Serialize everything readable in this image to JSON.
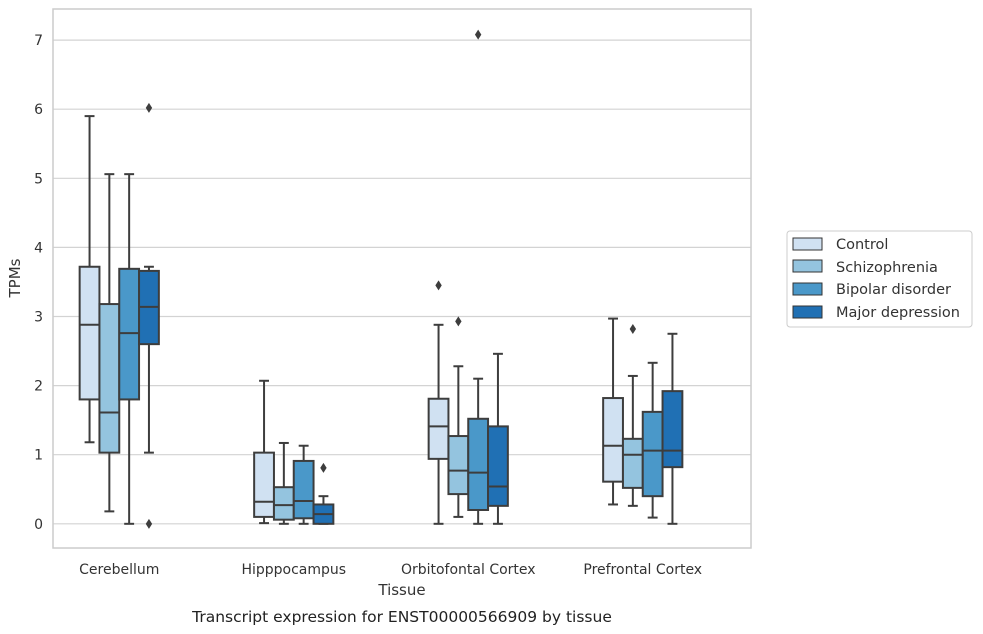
{
  "chart_data": {
    "type": "box",
    "title": "",
    "caption": "Transcript expression for ENST00000566909 by tissue",
    "xlabel": "Tissue",
    "ylabel": "TPMs",
    "ylim": [
      -0.35,
      7.45
    ],
    "yticks": [
      0,
      1,
      2,
      3,
      4,
      5,
      6,
      7
    ],
    "grid": true,
    "legend_position": "right",
    "categories": [
      "Cerebellum",
      "Hipppocampus",
      "Orbitofontal Cortex",
      "Prefrontal Cortex"
    ],
    "series": [
      {
        "name": "Control",
        "color": "#d0e1f2",
        "boxes": [
          {
            "whisker_low": 1.18,
            "q1": 1.8,
            "median": 2.88,
            "q3": 3.72,
            "whisker_high": 5.9,
            "outliers": []
          },
          {
            "whisker_low": 0.01,
            "q1": 0.1,
            "median": 0.32,
            "q3": 1.03,
            "whisker_high": 2.07,
            "outliers": []
          },
          {
            "whisker_low": 0.0,
            "q1": 0.94,
            "median": 1.41,
            "q3": 1.81,
            "whisker_high": 2.88,
            "outliers": [
              3.45
            ]
          },
          {
            "whisker_low": 0.28,
            "q1": 0.61,
            "median": 1.13,
            "q3": 1.82,
            "whisker_high": 2.97,
            "outliers": []
          }
        ]
      },
      {
        "name": "Schizophrenia",
        "color": "#94c4df",
        "boxes": [
          {
            "whisker_low": 0.18,
            "q1": 1.03,
            "median": 1.61,
            "q3": 3.18,
            "whisker_high": 5.06,
            "outliers": []
          },
          {
            "whisker_low": 0.0,
            "q1": 0.06,
            "median": 0.27,
            "q3": 0.53,
            "whisker_high": 1.17,
            "outliers": []
          },
          {
            "whisker_low": 0.1,
            "q1": 0.43,
            "median": 0.77,
            "q3": 1.27,
            "whisker_high": 2.28,
            "outliers": [
              2.93
            ]
          },
          {
            "whisker_low": 0.26,
            "q1": 0.52,
            "median": 1.0,
            "q3": 1.23,
            "whisker_high": 2.14,
            "outliers": [
              2.82
            ]
          }
        ]
      },
      {
        "name": "Bipolar disorder",
        "color": "#4a98c9",
        "boxes": [
          {
            "whisker_low": 0.0,
            "q1": 1.8,
            "median": 2.76,
            "q3": 3.69,
            "whisker_high": 5.06,
            "outliers": []
          },
          {
            "whisker_low": 0.0,
            "q1": 0.08,
            "median": 0.33,
            "q3": 0.91,
            "whisker_high": 1.13,
            "outliers": []
          },
          {
            "whisker_low": 0.0,
            "q1": 0.2,
            "median": 0.74,
            "q3": 1.52,
            "whisker_high": 2.1,
            "outliers": [
              7.08
            ]
          },
          {
            "whisker_low": 0.09,
            "q1": 0.4,
            "median": 1.06,
            "q3": 1.62,
            "whisker_high": 2.33,
            "outliers": []
          }
        ]
      },
      {
        "name": "Major depression",
        "color": "#2070b4",
        "boxes": [
          {
            "whisker_low": 1.03,
            "q1": 2.6,
            "median": 3.14,
            "q3": 3.66,
            "whisker_high": 3.72,
            "outliers": [
              6.02,
              0.0
            ]
          },
          {
            "whisker_low": 0.0,
            "q1": 0.0,
            "median": 0.14,
            "q3": 0.28,
            "whisker_high": 0.4,
            "outliers": [
              0.81
            ]
          },
          {
            "whisker_low": 0.0,
            "q1": 0.26,
            "median": 0.54,
            "q3": 1.41,
            "whisker_high": 2.46,
            "outliers": []
          },
          {
            "whisker_low": 0.0,
            "q1": 0.82,
            "median": 1.06,
            "q3": 1.92,
            "whisker_high": 2.75,
            "outliers": []
          }
        ]
      }
    ]
  }
}
